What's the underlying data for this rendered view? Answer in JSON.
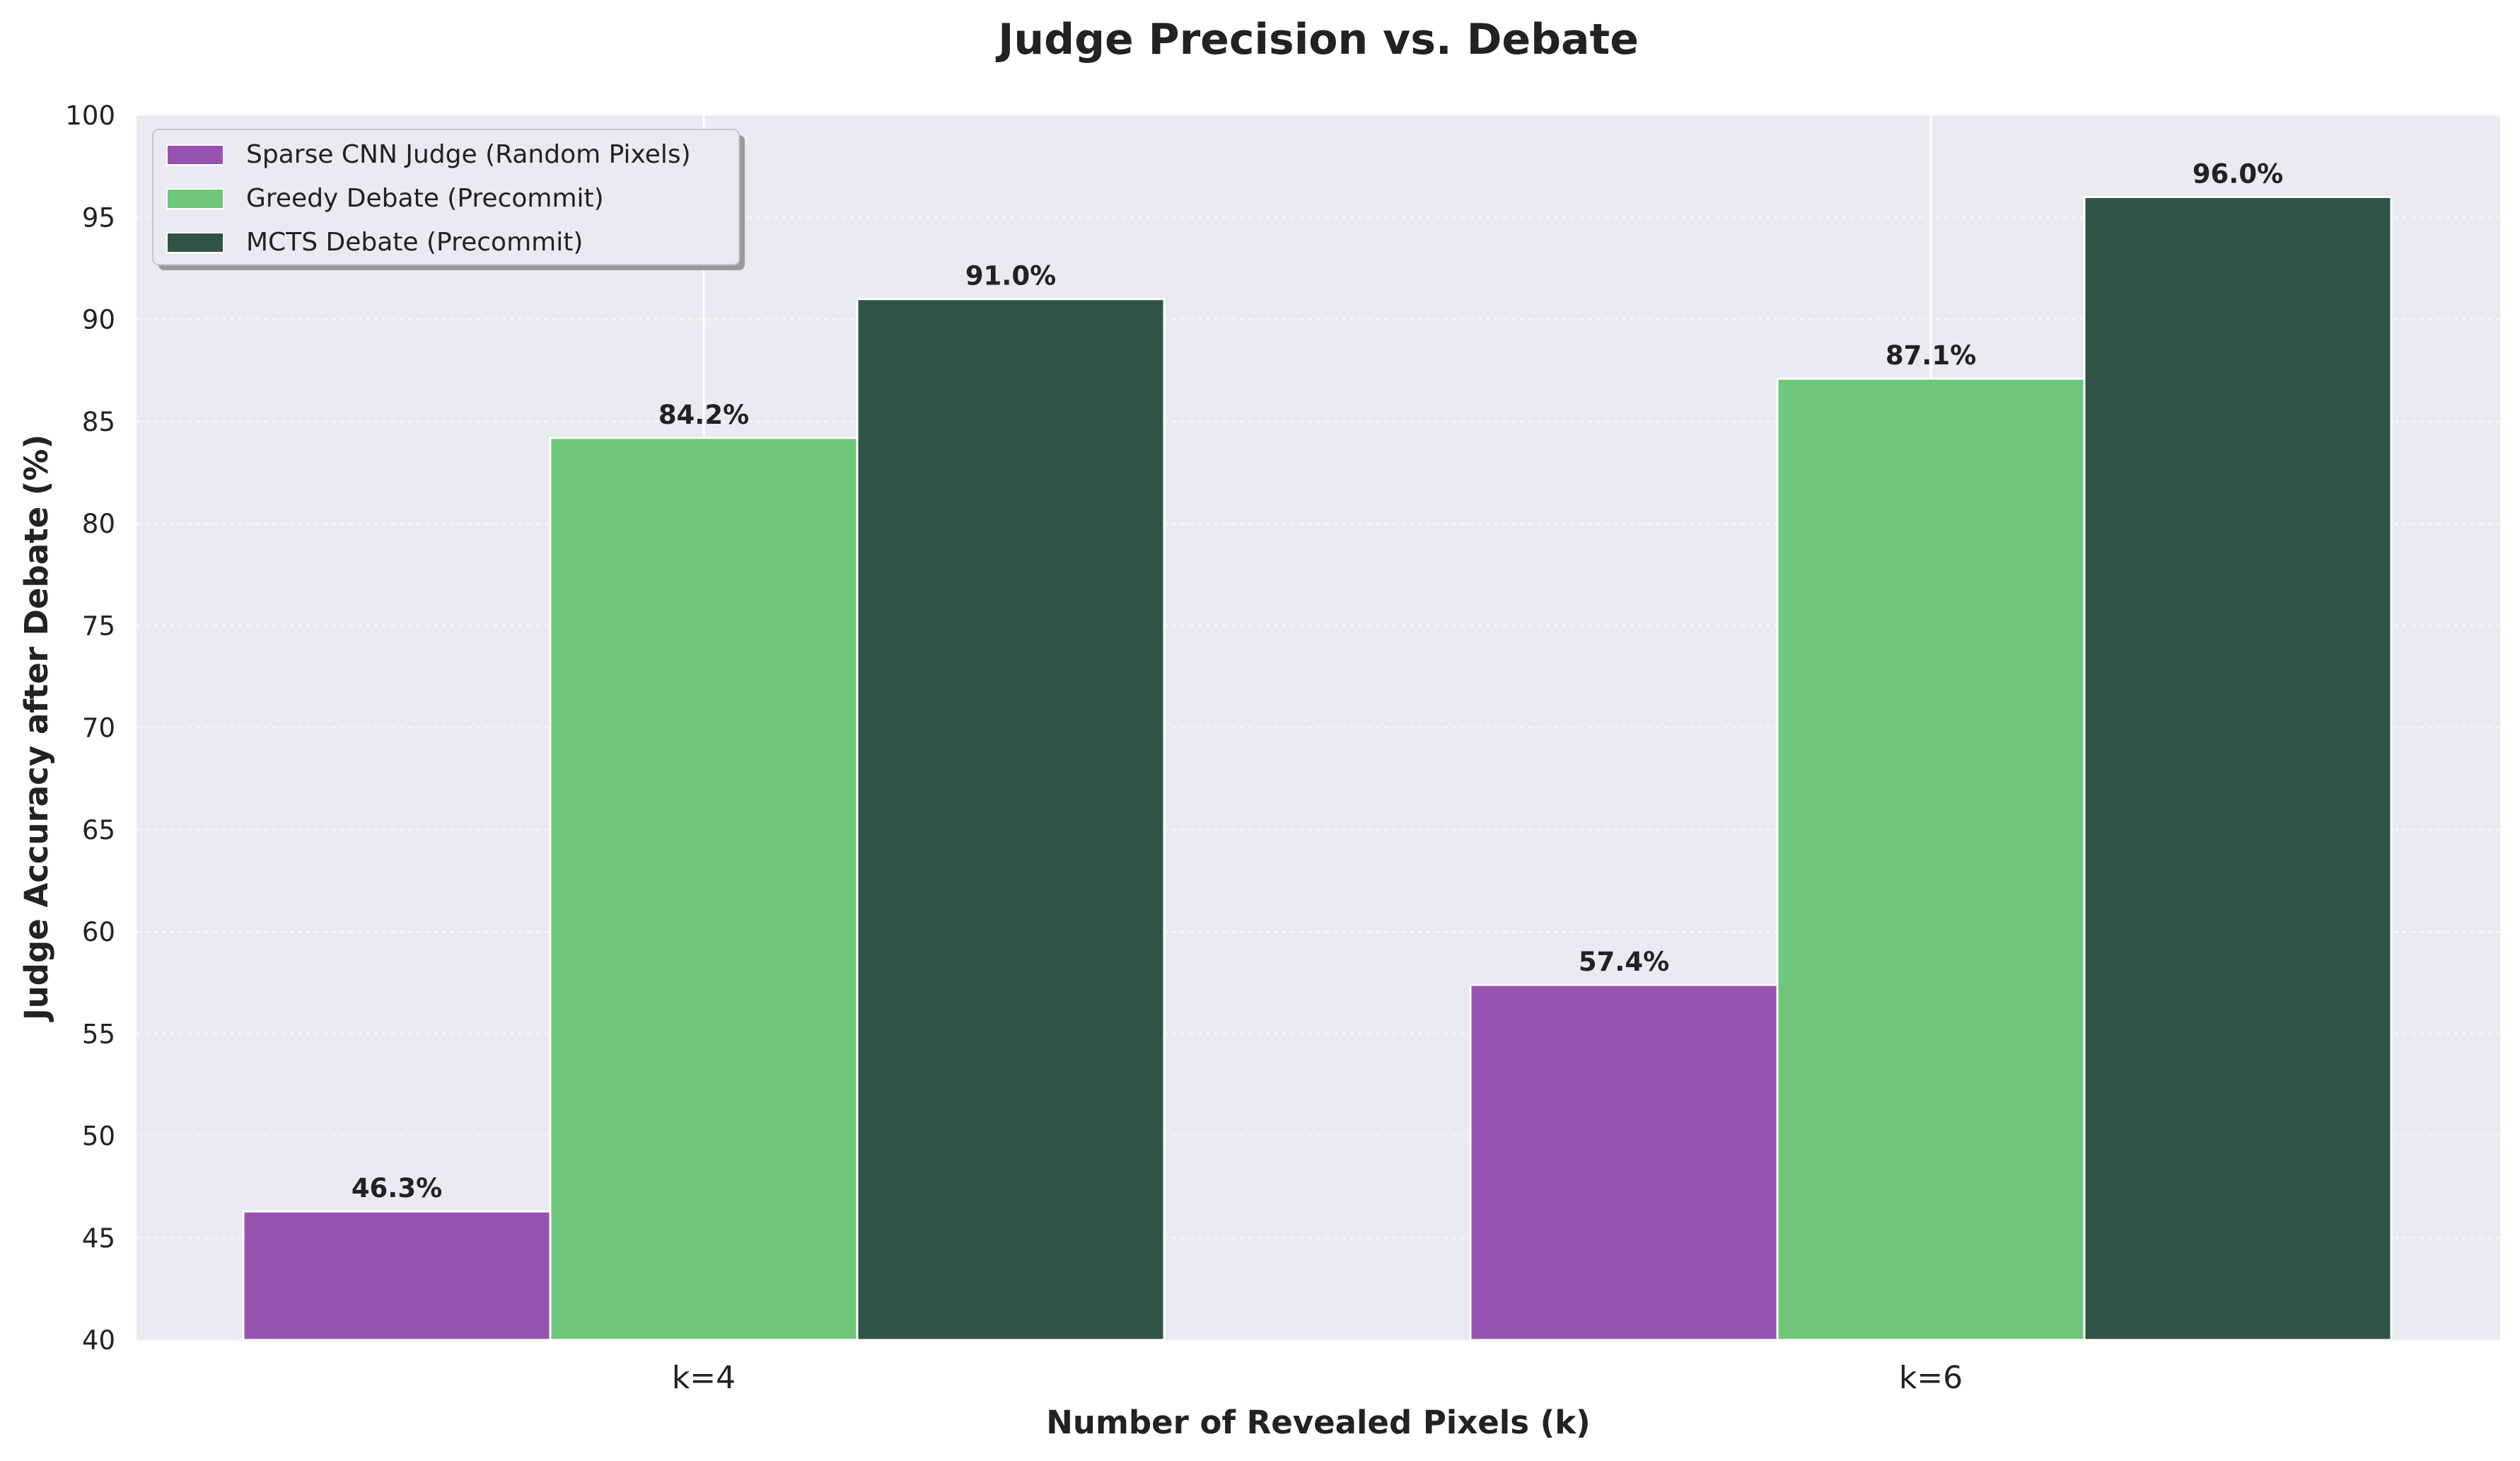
{
  "chart_data": {
    "type": "bar",
    "title": "Judge Precision vs. Debate",
    "xlabel": "Number of Revealed Pixels (k)",
    "ylabel": "Judge Accuracy after Debate (%)",
    "categories": [
      "k=4",
      "k=6"
    ],
    "ylim": [
      40,
      100
    ],
    "yticks": [
      40,
      45,
      50,
      55,
      60,
      65,
      70,
      75,
      80,
      85,
      90,
      95,
      100
    ],
    "series": [
      {
        "name": "Sparse CNN Judge (Random Pixels)",
        "values": [
          46.3,
          57.4
        ],
        "labels": [
          "46.3%",
          "57.4%"
        ],
        "color": "#9853b1"
      },
      {
        "name": "Greedy Debate (Precommit)",
        "values": [
          84.2,
          87.1
        ],
        "labels": [
          "84.2%",
          "87.1%"
        ],
        "color": "#6fc77c"
      },
      {
        "name": "MCTS Debate (Precommit)",
        "values": [
          91.0,
          96.0
        ],
        "labels": [
          "91.0%",
          "96.0%"
        ],
        "color": "#2f5446"
      }
    ],
    "legend_position": "top-left",
    "grid": true,
    "plot_background": "#eaeaf2"
  }
}
